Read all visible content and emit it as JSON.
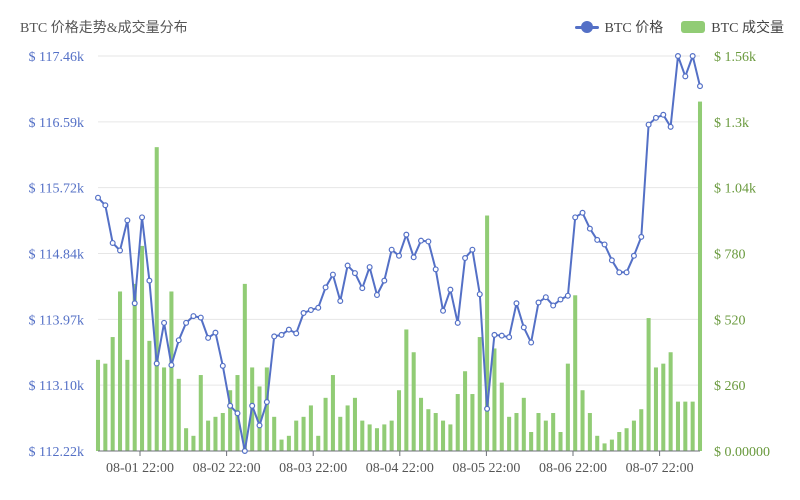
{
  "title": "BTC 价格走势&成交量分布",
  "legend": {
    "price": {
      "label": "BTC 价格",
      "color": "#5470c6"
    },
    "volume": {
      "label": "BTC 成交量",
      "color": "#91cc75"
    }
  },
  "chart_data": {
    "type": "line+bar",
    "title": "BTC 价格走势&成交量分布",
    "x_tick_labels": [
      "08-01 22:00",
      "08-02 22:00",
      "08-03 22:00",
      "08-04 22:00",
      "08-05 22:00",
      "08-06 22:00",
      "08-07 22:00"
    ],
    "y_left": {
      "name": "BTC 价格",
      "unit": "$",
      "min": 112.22,
      "max": 117.46,
      "tick_labels": [
        "$ 112.22k",
        "$ 113.10k",
        "$ 113.97k",
        "$ 114.84k",
        "$ 115.72k",
        "$ 116.59k",
        "$ 117.46k"
      ]
    },
    "y_right": {
      "name": "BTC 成交量",
      "unit": "$",
      "min": 0,
      "max": 1.56,
      "tick_labels": [
        "$ 0.00000",
        "$ 260",
        "$ 520",
        "$ 780",
        "$ 1.04k",
        "$ 1.3k",
        "$ 1.56k"
      ]
    },
    "grid": true,
    "legend_position": "top-right",
    "series": [
      {
        "name": "BTC 价格",
        "type": "line",
        "axis": "left",
        "values": [
          115.58,
          115.48,
          114.98,
          114.88,
          115.28,
          114.18,
          115.32,
          114.48,
          113.38,
          113.92,
          113.36,
          113.69,
          113.92,
          114.01,
          113.99,
          113.72,
          113.79,
          113.35,
          112.82,
          112.72,
          112.22,
          112.82,
          112.56,
          112.87,
          113.74,
          113.76,
          113.83,
          113.78,
          114.05,
          114.09,
          114.12,
          114.39,
          114.56,
          114.21,
          114.68,
          114.58,
          114.38,
          114.66,
          114.29,
          114.48,
          114.89,
          114.81,
          115.09,
          114.79,
          115.01,
          115.0,
          114.63,
          114.08,
          114.36,
          113.92,
          114.78,
          114.89,
          114.3,
          112.78,
          113.76,
          113.75,
          113.73,
          114.18,
          113.86,
          113.66,
          114.19,
          114.26,
          114.15,
          114.23,
          114.28,
          115.32,
          115.38,
          115.17,
          115.02,
          114.96,
          114.75,
          114.59,
          114.59,
          114.81,
          115.06,
          116.55,
          116.64,
          116.68,
          116.52,
          117.46,
          117.19,
          117.46,
          117.06
        ]
      },
      {
        "name": "BTC 成交量",
        "type": "bar",
        "axis": "right",
        "values": [
          0.36,
          0.345,
          0.45,
          0.63,
          0.36,
          0.66,
          0.81,
          0.435,
          1.2,
          0.33,
          0.63,
          0.285,
          0.09,
          0.06,
          0.3,
          0.12,
          0.135,
          0.15,
          0.24,
          0.3,
          0.66,
          0.33,
          0.255,
          0.33,
          0.135,
          0.045,
          0.06,
          0.12,
          0.135,
          0.18,
          0.06,
          0.21,
          0.3,
          0.135,
          0.18,
          0.21,
          0.12,
          0.105,
          0.09,
          0.105,
          0.12,
          0.24,
          0.48,
          0.39,
          0.21,
          0.165,
          0.15,
          0.12,
          0.105,
          0.225,
          0.315,
          0.225,
          0.45,
          0.93,
          0.405,
          0.27,
          0.135,
          0.15,
          0.21,
          0.075,
          0.15,
          0.12,
          0.15,
          0.075,
          0.345,
          0.615,
          0.24,
          0.15,
          0.06,
          0.03,
          0.045,
          0.075,
          0.09,
          0.12,
          0.165,
          0.525,
          0.33,
          0.345,
          0.39,
          0.195,
          0.195,
          0.195,
          1.38
        ]
      }
    ]
  }
}
